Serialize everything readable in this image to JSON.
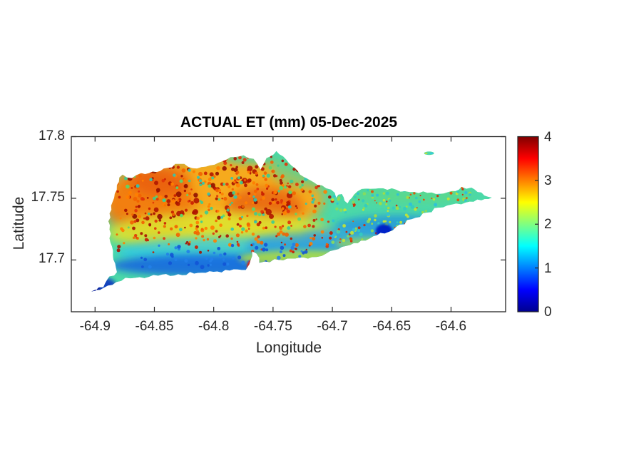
{
  "chart_data": {
    "type": "heatmap",
    "title": "ACTUAL ET (mm) 05-Dec-2025",
    "date_shown": "05-Dec-2025",
    "xlabel": "Longitude",
    "ylabel": "Latitude",
    "xlim": [
      -64.92,
      -64.554
    ],
    "ylim": [
      17.658,
      17.8
    ],
    "xticks": [
      -64.9,
      -64.85,
      -64.8,
      -64.75,
      -64.7,
      -64.65,
      -64.6
    ],
    "xtick_labels": [
      "-64.9",
      "-64.85",
      "-64.8",
      "-64.75",
      "-64.7",
      "-64.65",
      "-64.6"
    ],
    "yticks": [
      17.7,
      17.75,
      17.8
    ],
    "ytick_labels": [
      "17.7",
      "17.75",
      "17.8"
    ],
    "grid": false,
    "colors": {
      "background": "#FFFFFF",
      "axes_color": "#262626",
      "title_color": "#000000",
      "island_base_color": "#4CD9A8"
    },
    "colorbar": {
      "orientation": "vertical",
      "min": 0,
      "max": 4,
      "ticks": [
        0,
        1,
        2,
        3,
        4
      ],
      "tick_labels": [
        "0",
        "1",
        "2",
        "3",
        "4"
      ],
      "colormap": "jet",
      "gradient_stops": [
        {
          "offset": 0.0,
          "color": "#00008F"
        },
        {
          "offset": 0.125,
          "color": "#0000FF"
        },
        {
          "offset": 0.375,
          "color": "#00FFFF"
        },
        {
          "offset": 0.5,
          "color": "#80FF80"
        },
        {
          "offset": 0.625,
          "color": "#FFFF00"
        },
        {
          "offset": 0.875,
          "color": "#FF0000"
        },
        {
          "offset": 1.0,
          "color": "#800000"
        }
      ]
    },
    "island_outline": [
      [
        -64.9032,
        17.6744
      ],
      [
        -64.893,
        17.6779
      ],
      [
        -64.89,
        17.6837
      ],
      [
        -64.8816,
        17.6901
      ],
      [
        -64.8858,
        17.711
      ],
      [
        -64.8888,
        17.7314
      ],
      [
        -64.8852,
        17.7471
      ],
      [
        -64.8816,
        17.7605
      ],
      [
        -64.8768,
        17.7692
      ],
      [
        -64.869,
        17.7663
      ],
      [
        -64.8612,
        17.7703
      ],
      [
        -64.845,
        17.7721
      ],
      [
        -64.8288,
        17.7779
      ],
      [
        -64.818,
        17.7744
      ],
      [
        -64.803,
        17.7767
      ],
      [
        -64.7892,
        17.7814
      ],
      [
        -64.7748,
        17.7849
      ],
      [
        -64.7664,
        17.782
      ],
      [
        -64.7604,
        17.7733
      ],
      [
        -64.7556,
        17.7826
      ],
      [
        -64.7472,
        17.7884
      ],
      [
        -64.7388,
        17.7814
      ],
      [
        -64.7292,
        17.7721
      ],
      [
        -64.7184,
        17.7645
      ],
      [
        -64.7088,
        17.7605
      ],
      [
        -64.701,
        17.757
      ],
      [
        -64.6968,
        17.7506
      ],
      [
        -64.692,
        17.7535
      ],
      [
        -64.6872,
        17.7459
      ],
      [
        -64.6818,
        17.7529
      ],
      [
        -64.6752,
        17.7576
      ],
      [
        -64.6608,
        17.7581
      ],
      [
        -64.6464,
        17.757
      ],
      [
        -64.6308,
        17.7552
      ],
      [
        -64.6128,
        17.7535
      ],
      [
        -64.5996,
        17.7558
      ],
      [
        -64.5912,
        17.7593
      ],
      [
        -64.5828,
        17.7587
      ],
      [
        -64.5744,
        17.7547
      ],
      [
        -64.5654,
        17.7506
      ],
      [
        -64.5744,
        17.7483
      ],
      [
        -64.5876,
        17.7465
      ],
      [
        -64.5996,
        17.7448
      ],
      [
        -64.6104,
        17.7424
      ],
      [
        -64.62,
        17.7384
      ],
      [
        -64.6332,
        17.7331
      ],
      [
        -64.6464,
        17.7267
      ],
      [
        -64.656,
        17.7215
      ],
      [
        -64.6656,
        17.7192
      ],
      [
        -64.6758,
        17.7157
      ],
      [
        -64.6848,
        17.7122
      ],
      [
        -64.695,
        17.7087
      ],
      [
        -64.7052,
        17.7052
      ],
      [
        -64.7172,
        17.7023
      ],
      [
        -64.731,
        17.7012
      ],
      [
        -64.7448,
        17.7
      ],
      [
        -64.7568,
        17.6988
      ],
      [
        -64.7616,
        17.6977
      ],
      [
        -64.764,
        17.7052
      ],
      [
        -64.7676,
        17.707
      ],
      [
        -64.77,
        17.6965
      ],
      [
        -64.773,
        17.6919
      ],
      [
        -64.7832,
        17.6924
      ],
      [
        -64.797,
        17.6907
      ],
      [
        -64.8132,
        17.6895
      ],
      [
        -64.83,
        17.6884
      ],
      [
        -64.8468,
        17.6872
      ],
      [
        -64.8624,
        17.686
      ],
      [
        -64.8744,
        17.6855
      ],
      [
        -64.8822,
        17.682
      ]
    ],
    "buck_island": {
      "cx": -64.6185,
      "cy": 17.7865,
      "rx": 0.0042,
      "ry": 0.0014,
      "color": "#4ED9A6",
      "details": [
        {
          "cx": -64.621,
          "cy": 17.7865,
          "r": 0.0012,
          "color": "#BCDC3C"
        },
        {
          "cx": -64.6165,
          "cy": 17.7865,
          "r": 0.0013,
          "color": "#36C8E0"
        }
      ]
    },
    "soft_regions": [
      {
        "name": "west-orange-high-et",
        "cx": -64.8,
        "cy": 17.749,
        "rx": 0.092,
        "ry": 0.034,
        "color": "#FFA818",
        "opacity": 0.95,
        "blur": 8
      },
      {
        "name": "northwest-orange-deep",
        "cx": -64.853,
        "cy": 17.744,
        "rx": 0.038,
        "ry": 0.03,
        "color": "#F07010",
        "opacity": 0.75,
        "blur": 8
      },
      {
        "name": "central-red-patch",
        "cx": -64.757,
        "cy": 17.743,
        "rx": 0.032,
        "ry": 0.016,
        "color": "#E44810",
        "opacity": 0.6,
        "blur": 7
      },
      {
        "name": "nw-red-patch",
        "cx": -64.845,
        "cy": 17.764,
        "rx": 0.025,
        "ry": 0.012,
        "color": "#E44810",
        "opacity": 0.5,
        "blur": 7
      },
      {
        "name": "ne-slope-green",
        "cx": -64.725,
        "cy": 17.772,
        "rx": 0.026,
        "ry": 0.013,
        "color": "#48D8A0",
        "opacity": 0.55,
        "blur": 6
      },
      {
        "name": "peninsula-north-green",
        "cx": -64.635,
        "cy": 17.752,
        "rx": 0.055,
        "ry": 0.006,
        "color": "#66D87A",
        "opacity": 0.5,
        "blur": 5
      },
      {
        "name": "salt-river-green-patch",
        "cx": -64.77,
        "cy": 17.782,
        "rx": 0.02,
        "ry": 0.005,
        "color": "#48D0A8",
        "opacity": 0.4,
        "blur": 4
      },
      {
        "name": "yellow-transition-band",
        "cx": -64.795,
        "cy": 17.722,
        "rx": 0.095,
        "ry": 0.017,
        "color": "#DCE832",
        "opacity": 0.85,
        "blur": 7
      },
      {
        "name": "cyan-band-west",
        "cx": -64.79,
        "cy": 17.7065,
        "rx": 0.092,
        "ry": 0.012,
        "color": "#2EC8E8",
        "opacity": 0.8,
        "blur": 6
      },
      {
        "name": "mid-south-blue-band",
        "cx": -64.723,
        "cy": 17.71,
        "rx": 0.05,
        "ry": 0.012,
        "color": "#2894E4",
        "opacity": 0.7,
        "blur": 6
      },
      {
        "name": "east-blue-band",
        "cx": -64.645,
        "cy": 17.7275,
        "rx": 0.052,
        "ry": 0.009,
        "color": "#2090E0",
        "opacity": 0.75,
        "blur": 5
      },
      {
        "name": "east-blue-band-west-part",
        "cx": -64.688,
        "cy": 17.7175,
        "rx": 0.038,
        "ry": 0.01,
        "color": "#30A0E4",
        "opacity": 0.6,
        "blur": 6
      },
      {
        "name": "blue-south-coast-band",
        "cx": -64.801,
        "cy": 17.6955,
        "rx": 0.086,
        "ry": 0.009,
        "color": "#1763E0",
        "opacity": 0.85,
        "blur": 5
      },
      {
        "name": "south-shore-yellowgreen",
        "cx": -64.723,
        "cy": 17.7015,
        "rx": 0.056,
        "ry": 0.0065,
        "color": "#B4E03C",
        "opacity": 0.85,
        "blur": 4
      },
      {
        "name": "south-shore-yellowgreen-e",
        "cx": -64.668,
        "cy": 17.713,
        "rx": 0.03,
        "ry": 0.005,
        "color": "#A8DC48",
        "opacity": 0.7,
        "blur": 4
      },
      {
        "name": "southwest-spit-blue",
        "cx": -64.8955,
        "cy": 17.68,
        "rx": 0.013,
        "ry": 0.006,
        "color": "#0A30C0",
        "opacity": 0.9,
        "blur": 3
      }
    ],
    "accent_features": [
      {
        "name": "southwest-tip-navy",
        "cx": -64.902,
        "cy": 17.6755,
        "rx": 0.006,
        "ry": 0.004,
        "color": "#000890",
        "opacity": 1,
        "blur": 1.5
      },
      {
        "name": "dark-blue-blob",
        "cx": -64.6565,
        "cy": 17.7235,
        "rx": 0.007,
        "ry": 0.0055,
        "color": "#0520C8",
        "opacity": 1,
        "blur": 1.5
      },
      {
        "name": "inlet-red-streak",
        "cx": -64.7685,
        "cy": 17.694,
        "rx": 0.0035,
        "ry": 0.006,
        "color": "#E02808",
        "opacity": 1,
        "blur": 1
      }
    ],
    "speckle_groups": [
      {
        "name": "west-red-speckles",
        "lon": [
          -64.882,
          -64.7
        ],
        "lat": [
          17.706,
          17.784
        ],
        "count": 250,
        "rmin": 1.2,
        "rmax": 2.6,
        "colors": [
          "#C81C00",
          "#E03408",
          "#A61200"
        ],
        "seed": 7
      },
      {
        "name": "west-darkred-clusters",
        "lon": [
          -64.872,
          -64.728
        ],
        "lat": [
          17.733,
          17.778
        ],
        "count": 45,
        "rmin": 2.4,
        "rmax": 4.2,
        "colors": [
          "#B01600",
          "#901000"
        ],
        "seed": 42
      },
      {
        "name": "west-orange-speckles",
        "lon": [
          -64.882,
          -64.702
        ],
        "lat": [
          17.712,
          17.782
        ],
        "count": 170,
        "rmin": 1.4,
        "rmax": 3.0,
        "colors": [
          "#FF7E00",
          "#F26200"
        ],
        "seed": 21
      },
      {
        "name": "west-green-speckles",
        "lon": [
          -64.876,
          -64.712
        ],
        "lat": [
          17.722,
          17.78
        ],
        "count": 80,
        "rmin": 1.4,
        "rmax": 2.8,
        "colors": [
          "#3CCC92",
          "#5AD86A",
          "#2EC8B4"
        ],
        "seed": 99
      },
      {
        "name": "east-red-speckles",
        "lon": [
          -64.698,
          -64.578
        ],
        "lat": [
          17.714,
          17.76
        ],
        "count": 65,
        "rmin": 1.0,
        "rmax": 2.0,
        "colors": [
          "#D42600",
          "#E84E00"
        ],
        "seed": 13
      },
      {
        "name": "east-yellowgreen-speckles",
        "lon": [
          -64.7,
          -64.576
        ],
        "lat": [
          17.712,
          17.76
        ],
        "count": 110,
        "rmin": 1.4,
        "rmax": 2.6,
        "colors": [
          "#A6DE3E",
          "#C6E632",
          "#8ADC5A"
        ],
        "seed": 5
      },
      {
        "name": "east-cyan-speckles",
        "lon": [
          -64.7,
          -64.58
        ],
        "lat": [
          17.714,
          17.758
        ],
        "count": 60,
        "rmin": 1.5,
        "rmax": 2.8,
        "colors": [
          "#34CCC0",
          "#2EC0DC"
        ],
        "seed": 61
      },
      {
        "name": "south-blue-speckles",
        "lon": [
          -64.862,
          -64.716
        ],
        "lat": [
          17.694,
          17.713
        ],
        "count": 55,
        "rmin": 1.5,
        "rmax": 3.0,
        "colors": [
          "#1254D6",
          "#2280E8"
        ],
        "seed": 31
      }
    ]
  }
}
